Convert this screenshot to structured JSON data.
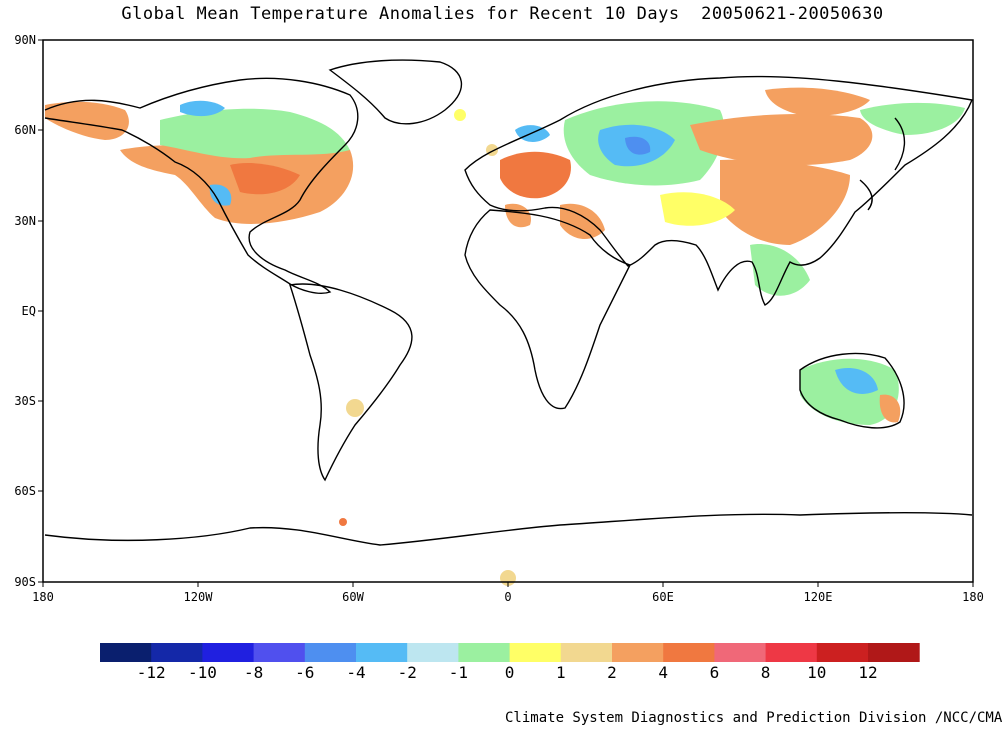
{
  "title": "Global Mean Temperature Anomalies for Recent 10 Days  20050621-20050630",
  "lat_labels": [
    "90N",
    "60N",
    "30N",
    "EQ",
    "30S",
    "60S",
    "90S"
  ],
  "lon_labels": [
    "180",
    "120W",
    "60W",
    "0",
    "60E",
    "120E",
    "180"
  ],
  "legend": {
    "labels": [
      "-12",
      "-10",
      "-8",
      "-6",
      "-4",
      "-2",
      "-1",
      "0",
      "1",
      "2",
      "4",
      "6",
      "8",
      "10",
      "12"
    ],
    "colors": [
      "#0a1f6e",
      "#1428a8",
      "#2020e0",
      "#5050ee",
      "#4e8ff0",
      "#55bbf5",
      "#bde6f0",
      "#9bf0a0",
      "#ffff66",
      "#f2d890",
      "#f4a060",
      "#f07840",
      "#f06878",
      "#ee3845",
      "#cc2020",
      "#b01818"
    ]
  },
  "credit": "Climate System Diagnostics and Prediction Division /NCC/CMA"
}
